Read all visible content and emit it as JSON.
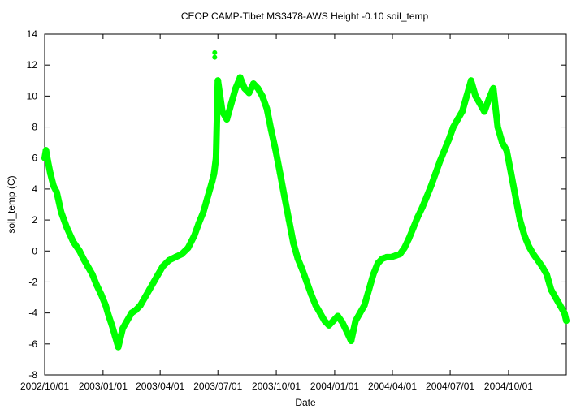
{
  "chart_data": {
    "type": "scatter",
    "title": "CEOP CAMP-Tibet MS3478-AWS Height -0.10 soil_temp",
    "xlabel": "Date",
    "ylabel": "soil_temp (C)",
    "x_axis_type": "date",
    "x_range": [
      "2002-10-01",
      "2004-12-31"
    ],
    "x_ticks": [
      "2002/10/01",
      "2003/01/01",
      "2003/04/01",
      "2003/07/01",
      "2003/10/01",
      "2004/01/01",
      "2004/04/01",
      "2004/07/01",
      "2004/10/01"
    ],
    "x_tick_labels": [
      "2002/10/01",
      "2003/01/01",
      "2003/04/01",
      "2003/07/01",
      "2003/10/01",
      "2004/01/01",
      "2004/04/01",
      "2004/07/01",
      "2004/10/01"
    ],
    "ylim": [
      -8,
      14
    ],
    "y_ticks": [
      -8,
      -6,
      -4,
      -2,
      0,
      2,
      4,
      6,
      8,
      10,
      12,
      14
    ],
    "grid": false,
    "marker_color": "#00ff00",
    "series": [
      {
        "x": [
          "2002-10-01",
          "2002-10-03",
          "2002-10-06",
          "2002-10-10",
          "2002-10-15",
          "2002-10-20",
          "2002-10-27",
          "2002-11-05",
          "2002-11-15",
          "2002-11-25",
          "2002-12-01",
          "2002-12-08",
          "2002-12-15",
          "2002-12-22",
          "2002-12-29",
          "2003-01-05",
          "2003-01-10",
          "2003-01-15",
          "2003-01-20",
          "2003-01-25",
          "2003-02-01",
          "2003-02-08",
          "2003-02-15",
          "2003-02-22",
          "2003-03-01",
          "2003-03-08",
          "2003-03-15",
          "2003-03-22",
          "2003-03-29",
          "2003-04-05",
          "2003-04-15",
          "2003-04-25",
          "2003-05-05",
          "2003-05-15",
          "2003-05-25",
          "2003-06-01",
          "2003-06-08",
          "2003-06-15",
          "2003-06-22",
          "2003-06-25",
          "2003-06-28",
          "2003-07-01",
          "2003-07-08",
          "2003-07-15",
          "2003-07-22",
          "2003-07-29",
          "2003-08-05",
          "2003-08-12",
          "2003-08-19",
          "2003-08-26",
          "2003-09-02",
          "2003-09-09",
          "2003-09-16",
          "2003-09-23",
          "2003-09-30",
          "2003-10-07",
          "2003-10-14",
          "2003-10-21",
          "2003-10-28",
          "2003-11-04",
          "2003-11-11",
          "2003-11-18",
          "2003-11-25",
          "2003-12-02",
          "2003-12-09",
          "2003-12-16",
          "2003-12-23",
          "2003-12-30",
          "2004-01-06",
          "2004-01-13",
          "2004-01-20",
          "2004-01-27",
          "2004-02-03",
          "2004-02-10",
          "2004-02-17",
          "2004-02-24",
          "2004-03-02",
          "2004-03-09",
          "2004-03-16",
          "2004-03-23",
          "2004-03-30",
          "2004-04-06",
          "2004-04-13",
          "2004-04-20",
          "2004-04-27",
          "2004-05-04",
          "2004-05-11",
          "2004-05-18",
          "2004-05-25",
          "2004-06-01",
          "2004-06-08",
          "2004-06-15",
          "2004-06-22",
          "2004-06-29",
          "2004-07-06",
          "2004-07-13",
          "2004-07-20",
          "2004-07-27",
          "2004-08-03",
          "2004-08-10",
          "2004-08-17",
          "2004-08-24",
          "2004-08-31",
          "2004-09-07",
          "2004-09-14",
          "2004-09-21",
          "2004-09-28",
          "2004-10-05",
          "2004-10-12",
          "2004-10-19",
          "2004-10-26",
          "2004-11-02",
          "2004-11-09",
          "2004-11-16",
          "2004-11-23",
          "2004-11-30",
          "2004-12-07",
          "2004-12-14",
          "2004-12-21",
          "2004-12-28",
          "2004-12-31"
        ],
        "y": [
          6.0,
          6.5,
          5.8,
          5.0,
          4.2,
          3.8,
          2.5,
          1.5,
          0.6,
          0.0,
          -0.5,
          -1.0,
          -1.5,
          -2.2,
          -2.8,
          -3.5,
          -4.2,
          -4.8,
          -5.5,
          -6.2,
          -5.0,
          -4.5,
          -4.0,
          -3.8,
          -3.5,
          -3.0,
          -2.5,
          -2.0,
          -1.5,
          -1.0,
          -0.6,
          -0.4,
          -0.2,
          0.2,
          1.0,
          1.8,
          2.5,
          3.5,
          4.5,
          5.0,
          6.0,
          11.0,
          9.0,
          8.5,
          9.5,
          10.5,
          11.2,
          10.5,
          10.2,
          10.8,
          10.5,
          10.0,
          9.2,
          7.8,
          6.5,
          5.0,
          3.5,
          2.0,
          0.5,
          -0.5,
          -1.2,
          -2.0,
          -2.8,
          -3.5,
          -4.0,
          -4.5,
          -4.8,
          -4.5,
          -4.2,
          -4.6,
          -5.2,
          -5.8,
          -4.5,
          -4.0,
          -3.5,
          -2.5,
          -1.5,
          -0.8,
          -0.5,
          -0.4,
          -0.4,
          -0.3,
          -0.2,
          0.2,
          0.8,
          1.5,
          2.2,
          2.8,
          3.5,
          4.2,
          5.0,
          5.8,
          6.5,
          7.2,
          8.0,
          8.5,
          9.0,
          10.0,
          11.0,
          10.0,
          9.5,
          9.0,
          9.8,
          10.5,
          8.0,
          7.0,
          6.5,
          5.0,
          3.5,
          2.0,
          1.0,
          0.3,
          -0.2,
          -0.6,
          -1.0,
          -1.5,
          -2.5,
          -3.0,
          -3.5,
          -4.0,
          -4.5
        ],
        "outliers_y": [
          12.8,
          12.5
        ]
      }
    ]
  }
}
